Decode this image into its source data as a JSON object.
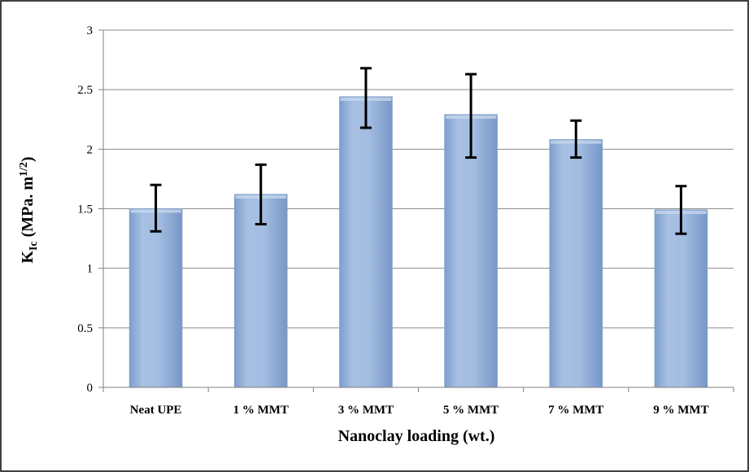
{
  "chart_data": {
    "type": "bar",
    "categories": [
      "Neat UPE",
      "1 % MMT",
      "3 % MMT",
      "5 % MMT",
      "7 % MMT",
      "9 % MMT"
    ],
    "values": [
      1.5,
      1.62,
      2.44,
      2.29,
      2.08,
      1.49
    ],
    "error_low": [
      1.31,
      1.37,
      2.18,
      1.93,
      1.93,
      1.29
    ],
    "error_high": [
      1.7,
      1.87,
      2.68,
      2.63,
      2.24,
      1.69
    ],
    "yticks": [
      "0",
      "0.5",
      "1",
      "1.5",
      "2",
      "2.5",
      "3"
    ],
    "ytick_values": [
      0,
      0.5,
      1,
      1.5,
      2,
      2.5,
      3
    ],
    "ylim": [
      0,
      3
    ],
    "xlabel": "Nanoclay loading (wt.)",
    "ylabel": "K",
    "ylabel_sub": "Ic",
    "ylabel_mid": " (MPa. m",
    "ylabel_sup": "1/2",
    "ylabel_end": ")",
    "grid": true,
    "bar_color": "#95b3d7",
    "bar_edge": "#7f9fc8",
    "legend": "none"
  }
}
